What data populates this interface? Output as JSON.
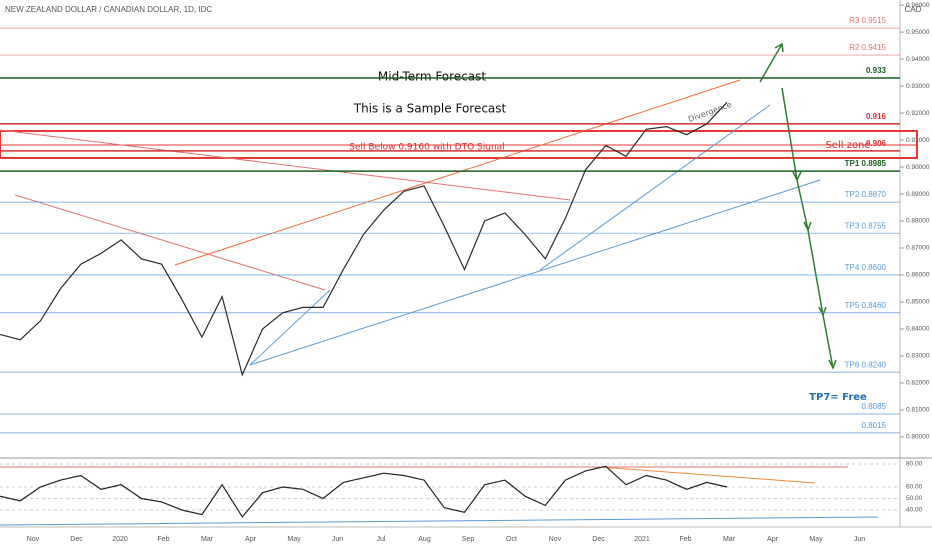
{
  "chart_data": {
    "type": "line",
    "title": "NEW ZEALAND DOLLAR / CANADIAN DOLLAR, 1D, IDC",
    "currency": "CAD",
    "annotations": [
      "Mid-Term Forecast",
      "This is a Sample Forecast",
      "Sell Below 0.9160 with DTO Signal",
      "Sell zone",
      "Divergence",
      "TP7= Free"
    ],
    "x_labels": [
      "Nov",
      "Dec",
      "2020",
      "Feb",
      "Mar",
      "Apr",
      "May",
      "Jun",
      "Jul",
      "Aug",
      "Sep",
      "Oct",
      "Nov",
      "Dec",
      "2021",
      "Feb",
      "Mar",
      "Apr",
      "May",
      "Jun"
    ],
    "series": [
      {
        "color": "#2b2b2b",
        "values": [
          0.838,
          0.836,
          0.843,
          0.855,
          0.864,
          0.868,
          0.873,
          0.866,
          0.864,
          0.851,
          0.837,
          0.852,
          0.823,
          0.84,
          0.846,
          0.848,
          0.848,
          0.862,
          0.875,
          0.884,
          0.891,
          0.893,
          0.878,
          0.862,
          0.88,
          0.883,
          0.875,
          0.866,
          0.881,
          0.899,
          0.908,
          0.904,
          0.914,
          0.915,
          0.912,
          0.916,
          0.924
        ]
      }
    ],
    "ylim": [
      0.7933,
      0.9619
    ],
    "yticks": [
      {
        "value": 0.96,
        "label": "0.96000"
      },
      {
        "value": 0.95,
        "label": "0.95000"
      },
      {
        "value": 0.94,
        "label": "0.94000"
      },
      {
        "value": 0.93,
        "label": "0.93000"
      },
      {
        "value": 0.92,
        "label": "0.92000"
      },
      {
        "value": 0.91,
        "label": "0.91000"
      },
      {
        "value": 0.9,
        "label": "0.90000"
      },
      {
        "value": 0.89,
        "label": "0.89000"
      },
      {
        "value": 0.88,
        "label": "0.88000"
      },
      {
        "value": 0.87,
        "label": "0.87000"
      },
      {
        "value": 0.86,
        "label": "0.86000"
      },
      {
        "value": 0.85,
        "label": "0.85000"
      },
      {
        "value": 0.84,
        "label": "0.84000"
      },
      {
        "value": 0.83,
        "label": "0.83000"
      },
      {
        "value": 0.82,
        "label": "0.82000"
      },
      {
        "value": 0.81,
        "label": "0.81000"
      },
      {
        "value": 0.8,
        "label": "0.80000"
      }
    ],
    "levels": [
      {
        "label": "R3 0.9515",
        "value": 0.9515,
        "color": "#e57373"
      },
      {
        "label": "R2 0.9415",
        "value": 0.9415,
        "color": "#e57373"
      },
      {
        "label": "0.933",
        "value": 0.933,
        "color": "#1b5e20"
      },
      {
        "label": "0.916",
        "value": 0.916,
        "color": "#d32f2f"
      },
      {
        "label": "0.906",
        "value": 0.906,
        "color": "#d32f2f"
      },
      {
        "label": "TP1 0.8985",
        "value": 0.8985,
        "color": "#1b5e20"
      },
      {
        "label": "TP2 0.8870",
        "value": 0.887,
        "color": "#5b9bd5"
      },
      {
        "label": "TP3 0.8755",
        "value": 0.8755,
        "color": "#5b9bd5"
      },
      {
        "label": "TP4 0.8600",
        "value": 0.86,
        "color": "#5b9bd5"
      },
      {
        "label": "TP5 0.8460",
        "value": 0.846,
        "color": "#5b9bd5"
      },
      {
        "label": "TP6 0.8240",
        "value": 0.824,
        "color": "#5b9bd5"
      },
      {
        "label": "0.8085",
        "value": 0.8085,
        "color": "#5b9bd5"
      },
      {
        "label": "0.8015",
        "value": 0.8015,
        "color": "#5b9bd5"
      }
    ],
    "oscillator": {
      "color": "#222222",
      "values": [
        52,
        48,
        60,
        66,
        70,
        58,
        62,
        50,
        47,
        40,
        36,
        62,
        34,
        55,
        60,
        58,
        50,
        64,
        68,
        72,
        70,
        66,
        42,
        38,
        62,
        66,
        52,
        44,
        66,
        74,
        78,
        62,
        70,
        66,
        58,
        64,
        60
      ],
      "ylim": [
        25.2,
        85.2
      ],
      "yticks": [
        {
          "value": 80,
          "label": "80.00"
        },
        {
          "value": 60,
          "label": "60.00"
        },
        {
          "value": 50,
          "label": "50.00"
        },
        {
          "value": 40,
          "label": "40.00"
        }
      ]
    }
  }
}
